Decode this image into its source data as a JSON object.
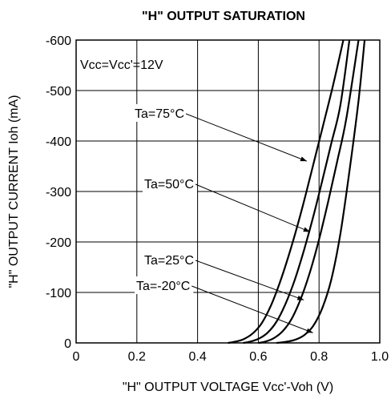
{
  "chart_data": {
    "type": "line",
    "title": "\"H\" OUTPUT SATURATION",
    "xlabel": "\"H\" OUTPUT VOLTAGE Vcc'-Voh (V)",
    "ylabel": "\"H\" OUTPUT CURRENT Ioh (mA)",
    "xlim": [
      0,
      1.0
    ],
    "ylim": [
      0,
      -600
    ],
    "x_ticks": [
      "0",
      "0.2",
      "0.4",
      "0.6",
      "0.8",
      "1.0"
    ],
    "y_ticks": [
      "0",
      "-100",
      "-200",
      "-300",
      "-400",
      "-500",
      "-600"
    ],
    "grid": true,
    "condition": "Vcc=Vcc'=12V",
    "series": [
      {
        "name": "Ta=75°C",
        "color": "#000000",
        "points": [
          [
            0.5,
            0
          ],
          [
            0.52,
            -2
          ],
          [
            0.55,
            -7
          ],
          [
            0.58,
            -18
          ],
          [
            0.61,
            -38
          ],
          [
            0.64,
            -72
          ],
          [
            0.67,
            -118
          ],
          [
            0.7,
            -173
          ],
          [
            0.73,
            -235
          ],
          [
            0.76,
            -303
          ],
          [
            0.79,
            -375
          ],
          [
            0.82,
            -447
          ],
          [
            0.85,
            -520
          ],
          [
            0.88,
            -600
          ]
        ]
      },
      {
        "name": "Ta=50°C",
        "color": "#000000",
        "points": [
          [
            0.55,
            0
          ],
          [
            0.57,
            -2
          ],
          [
            0.6,
            -8
          ],
          [
            0.63,
            -20
          ],
          [
            0.66,
            -42
          ],
          [
            0.69,
            -78
          ],
          [
            0.72,
            -125
          ],
          [
            0.75,
            -183
          ],
          [
            0.78,
            -248
          ],
          [
            0.81,
            -320
          ],
          [
            0.84,
            -395
          ],
          [
            0.87,
            -470
          ],
          [
            0.9,
            -600
          ]
        ]
      },
      {
        "name": "Ta=25°C",
        "color": "#000000",
        "points": [
          [
            0.6,
            0
          ],
          [
            0.62,
            -2
          ],
          [
            0.65,
            -9
          ],
          [
            0.68,
            -23
          ],
          [
            0.71,
            -48
          ],
          [
            0.74,
            -88
          ],
          [
            0.77,
            -140
          ],
          [
            0.8,
            -205
          ],
          [
            0.83,
            -280
          ],
          [
            0.86,
            -360
          ],
          [
            0.89,
            -445
          ],
          [
            0.93,
            -600
          ]
        ]
      },
      {
        "name": "Ta=-20°C",
        "color": "#000000",
        "points": [
          [
            0.66,
            0
          ],
          [
            0.69,
            -2
          ],
          [
            0.72,
            -6
          ],
          [
            0.75,
            -15
          ],
          [
            0.78,
            -33
          ],
          [
            0.81,
            -68
          ],
          [
            0.84,
            -125
          ],
          [
            0.87,
            -215
          ],
          [
            0.9,
            -340
          ],
          [
            0.93,
            -480
          ],
          [
            0.95,
            -600
          ]
        ]
      }
    ],
    "annotations": [
      {
        "label": "Ta=75°C",
        "target": [
          0.76,
          -360
        ]
      },
      {
        "label": "Ta=50°C",
        "target": [
          0.77,
          -220
        ]
      },
      {
        "label": "Ta=25°C",
        "target": [
          0.75,
          -85
        ]
      },
      {
        "label": "Ta=-20°C",
        "target": [
          0.78,
          -20
        ]
      }
    ]
  }
}
